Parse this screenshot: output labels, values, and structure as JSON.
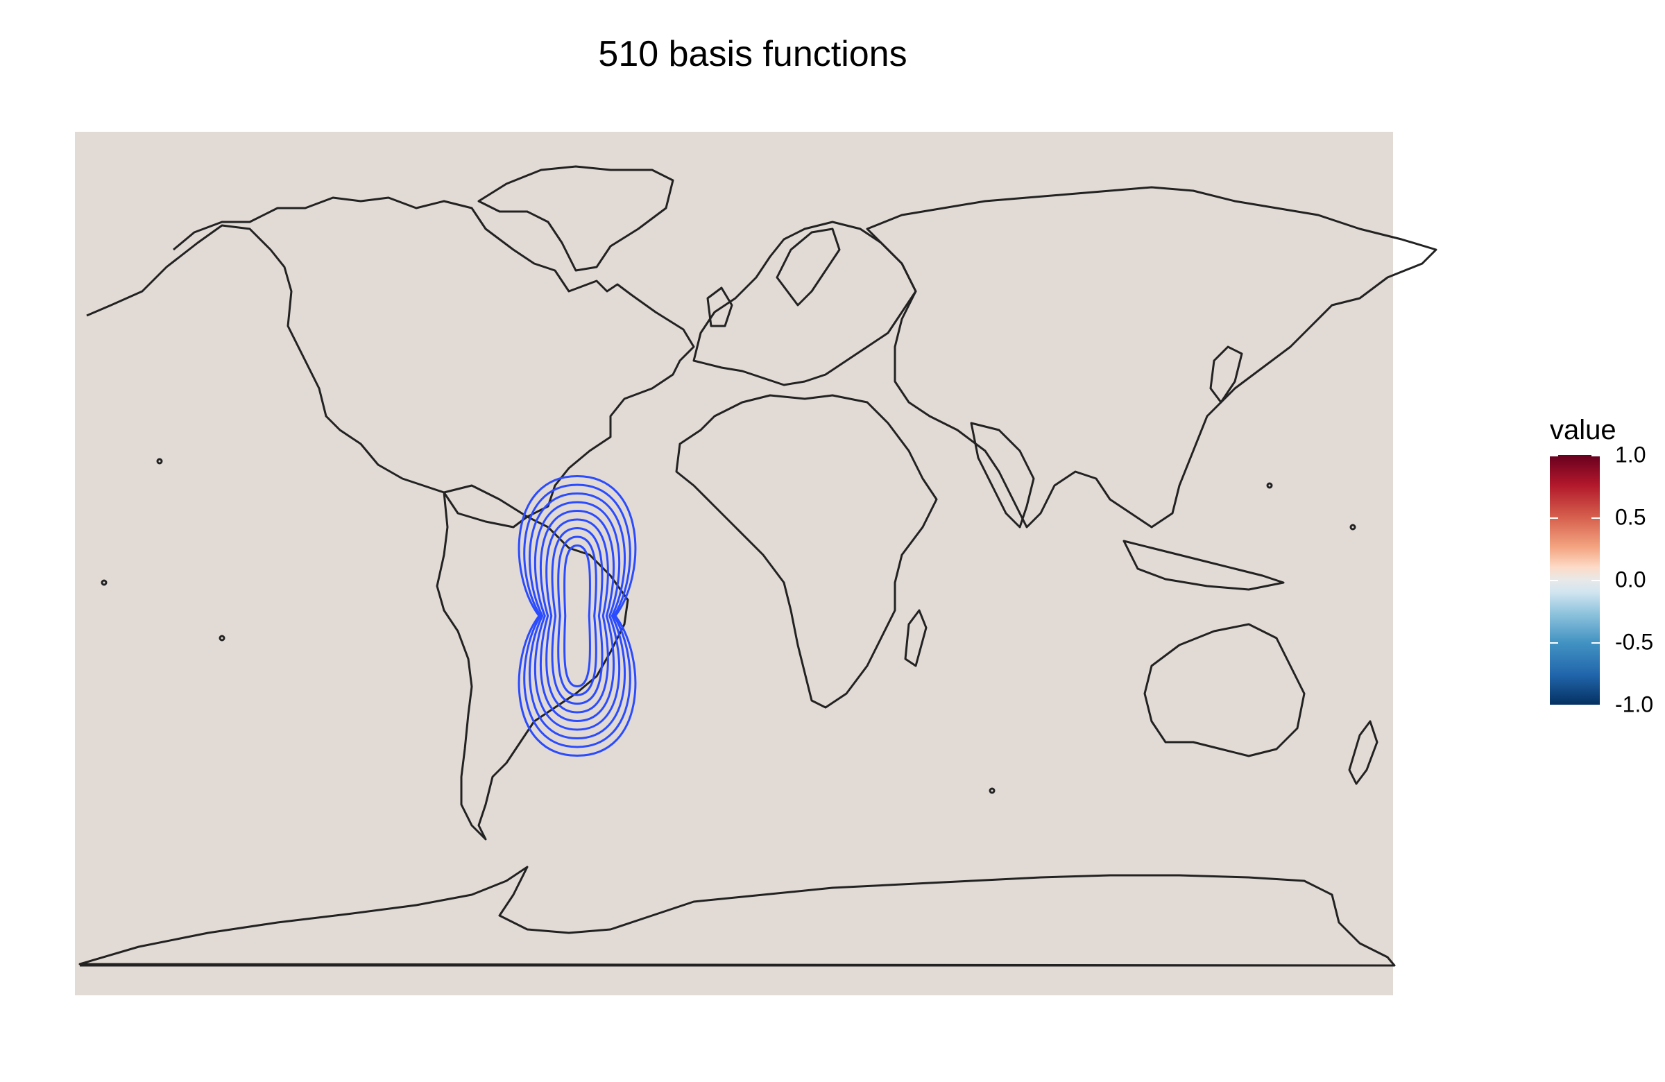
{
  "title": "510 basis functions",
  "map": {
    "background_color": "#e2dad5",
    "outline_color": "#222222",
    "contour_color": "#2a4bff",
    "contour_feature": "basis-function contours over eastern South America"
  },
  "legend": {
    "title": "value",
    "ticks": [
      "1.0",
      "0.5",
      "0.0",
      "-0.5",
      "-1.0"
    ],
    "tick_values": [
      1.0,
      0.5,
      0.0,
      -0.5,
      -1.0
    ],
    "range": [
      -1.0,
      1.0
    ],
    "palette": "RdBu"
  }
}
